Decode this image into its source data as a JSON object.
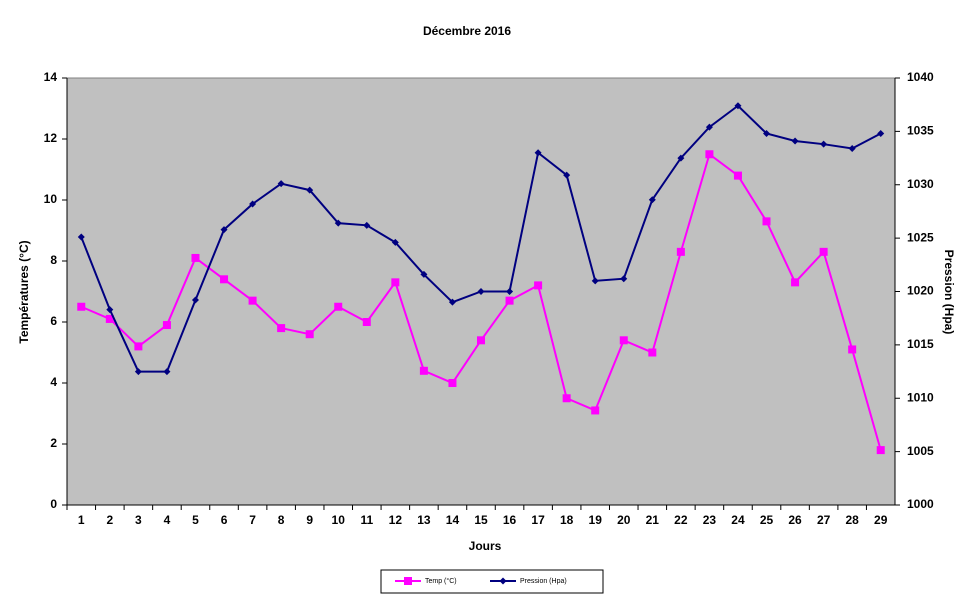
{
  "chart_data": {
    "type": "line",
    "title": "Décembre 2016",
    "x_label": "Jours",
    "y_label": "Températures (°C)",
    "y2_label": "Pression (Hpa)",
    "categories": [
      "1",
      "2",
      "3",
      "4",
      "5",
      "6",
      "7",
      "8",
      "9",
      "10",
      "11",
      "12",
      "13",
      "14",
      "15",
      "16",
      "17",
      "18",
      "19",
      "20",
      "21",
      "22",
      "23",
      "24",
      "25",
      "26",
      "27",
      "28",
      "29"
    ],
    "series": [
      {
        "name": "Temp (°C)",
        "color": "#ff00ff",
        "marker": "square",
        "values": [
          6.5,
          6.1,
          5.2,
          5.9,
          8.1,
          7.4,
          6.7,
          5.8,
          5.6,
          6.5,
          6.0,
          7.3,
          4.4,
          4.0,
          5.4,
          6.7,
          7.2,
          3.5,
          3.1,
          5.4,
          5.0,
          8.3,
          11.5,
          10.8,
          9.3,
          7.3,
          8.3,
          5.1,
          1.8
        ]
      },
      {
        "name": "Pression (Hpa)",
        "color": "#000080",
        "marker": "diamond",
        "axis": "y2",
        "values": [
          1025.1,
          1018.3,
          1012.5,
          1012.5,
          1019.2,
          1025.8,
          1028.2,
          1030.1,
          1029.5,
          1026.4,
          1026.2,
          1024.6,
          1021.6,
          1019.0,
          1020.0,
          1020.0,
          1033.0,
          1030.9,
          1021.0,
          1021.2,
          1028.6,
          1032.5,
          1035.4,
          1037.4,
          1034.8,
          1034.1,
          1033.8,
          1033.4,
          1034.8
        ]
      }
    ],
    "ylim": [
      0,
      14
    ],
    "yticks": [
      0,
      2,
      4,
      6,
      8,
      10,
      12,
      14
    ],
    "y2lim": [
      1000,
      1040
    ],
    "y2ticks": [
      1000,
      1005,
      1010,
      1015,
      1020,
      1025,
      1030,
      1035,
      1040
    ],
    "plot_background": "#c0c0c0",
    "legend": "bottom"
  }
}
